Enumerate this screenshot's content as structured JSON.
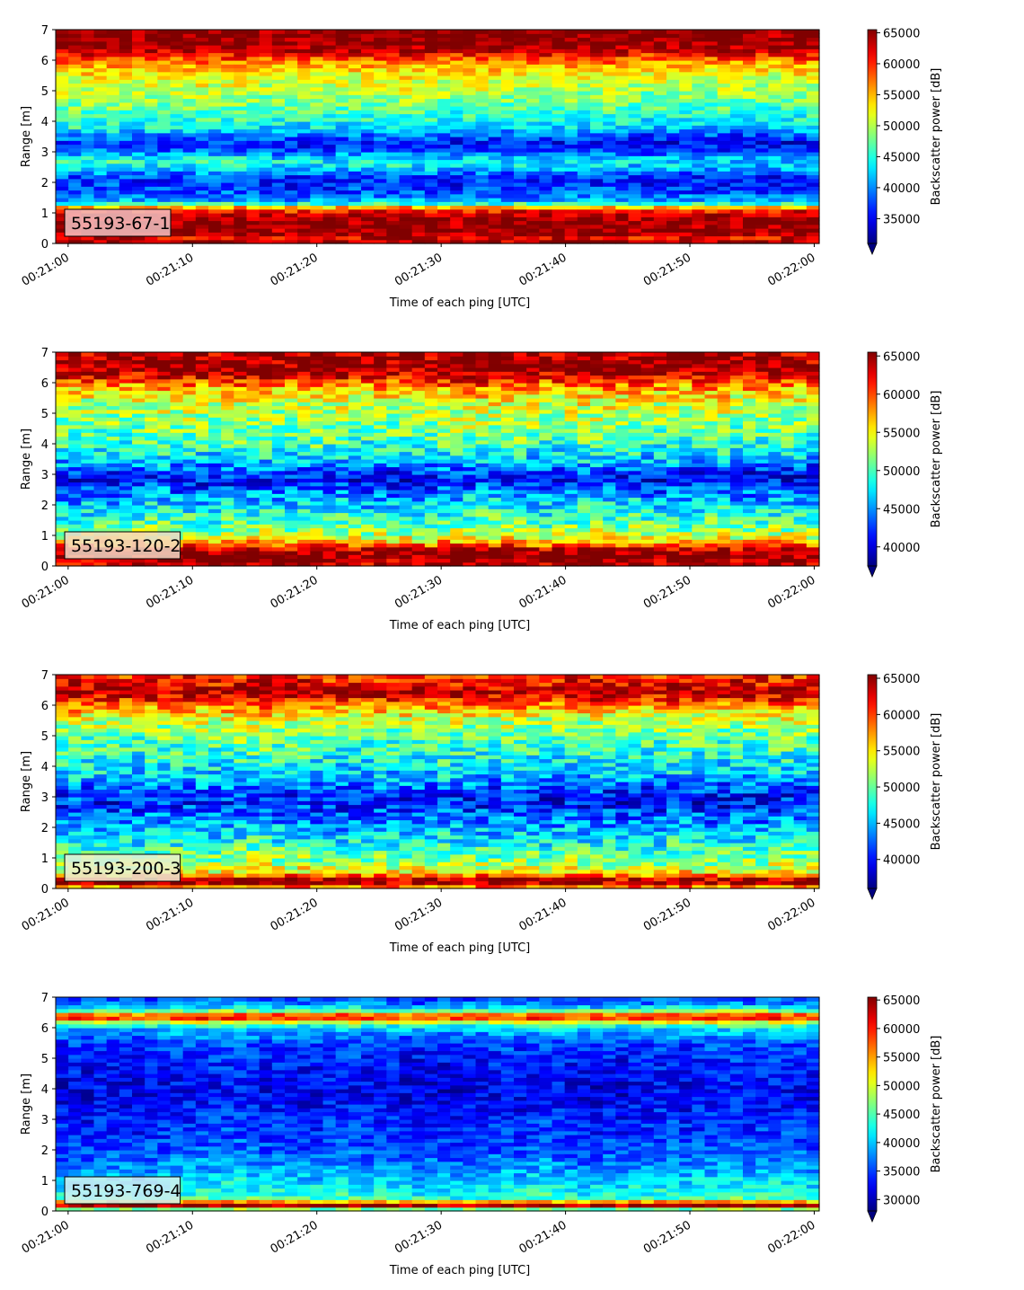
{
  "chart_data": [
    {
      "type": "heatmap",
      "label": "55193-67-1",
      "label_bg": "#f3c2c2",
      "xlabel": "Time of each ping [UTC]",
      "ylabel": "Range [m]",
      "colorbar_label": "Backscatter power [dB]",
      "ylim": [
        0,
        7
      ],
      "yticks": [
        "0",
        "1",
        "2",
        "3",
        "4",
        "5",
        "6",
        "7"
      ],
      "xticks": [
        "00:21:00",
        "00:21:10",
        "00:21:20",
        "00:21:30",
        "00:21:40",
        "00:21:50",
        "00:22:00"
      ],
      "x_seconds_range": [
        -1,
        60.4
      ],
      "cbar_range": [
        31000,
        65500
      ],
      "cbar_ticks": [
        "35000",
        "40000",
        "45000",
        "50000",
        "55000",
        "60000",
        "65000"
      ],
      "cbar_extend": "min",
      "colormap": "jet",
      "grid": false,
      "profile": [
        [
          0,
          65500
        ],
        [
          0.15,
          61000
        ],
        [
          0.3,
          64500
        ],
        [
          0.5,
          65000
        ],
        [
          0.8,
          64500
        ],
        [
          1.0,
          63000
        ],
        [
          1.15,
          58000
        ],
        [
          1.3,
          46000
        ],
        [
          1.45,
          40500
        ],
        [
          1.7,
          38000
        ],
        [
          2.0,
          37000
        ],
        [
          2.25,
          38500
        ],
        [
          2.45,
          43500
        ],
        [
          2.65,
          45500
        ],
        [
          2.85,
          43500
        ],
        [
          3.05,
          39000
        ],
        [
          3.3,
          37500
        ],
        [
          3.55,
          40500
        ],
        [
          3.8,
          44500
        ],
        [
          4.2,
          46500
        ],
        [
          4.6,
          48500
        ],
        [
          5.0,
          50500
        ],
        [
          5.4,
          52000
        ],
        [
          5.8,
          55000
        ],
        [
          6.05,
          58500
        ],
        [
          6.3,
          63000
        ],
        [
          6.55,
          65500
        ],
        [
          7.0,
          65500
        ]
      ],
      "trend": [
        [
          0,
          0
        ],
        [
          1.5,
          0
        ],
        [
          2.5,
          -2500
        ],
        [
          3.6,
          -3000
        ],
        [
          4.5,
          -1500
        ],
        [
          5.5,
          -800
        ],
        [
          6.2,
          0
        ],
        [
          7,
          0
        ]
      ],
      "noise": 3500,
      "seed": 11
    },
    {
      "type": "heatmap",
      "label": "55193-120-2",
      "label_bg": "#f3d9c5",
      "xlabel": "Time of each ping [UTC]",
      "ylabel": "Range [m]",
      "colorbar_label": "Backscatter power [dB]",
      "ylim": [
        0,
        7
      ],
      "yticks": [
        "0",
        "1",
        "2",
        "3",
        "4",
        "5",
        "6",
        "7"
      ],
      "xticks": [
        "00:21:00",
        "00:21:10",
        "00:21:20",
        "00:21:30",
        "00:21:40",
        "00:21:50",
        "00:22:00"
      ],
      "x_seconds_range": [
        -1,
        60.4
      ],
      "cbar_range": [
        37500,
        65500
      ],
      "cbar_ticks": [
        "40000",
        "45000",
        "50000",
        "55000",
        "60000",
        "65000"
      ],
      "cbar_extend": "min",
      "colormap": "jet",
      "grid": false,
      "profile": [
        [
          0,
          65000
        ],
        [
          0.1,
          64000
        ],
        [
          0.25,
          65500
        ],
        [
          0.5,
          65500
        ],
        [
          0.6,
          62000
        ],
        [
          0.75,
          58000
        ],
        [
          0.95,
          54000
        ],
        [
          1.3,
          51000
        ],
        [
          1.7,
          48500
        ],
        [
          2.1,
          46500
        ],
        [
          2.5,
          44000
        ],
        [
          2.8,
          41500
        ],
        [
          3.0,
          42500
        ],
        [
          3.3,
          45500
        ],
        [
          3.6,
          48000
        ],
        [
          4.0,
          50000
        ],
        [
          4.5,
          51500
        ],
        [
          5.0,
          52500
        ],
        [
          5.5,
          54500
        ],
        [
          5.9,
          58000
        ],
        [
          6.2,
          62500
        ],
        [
          6.5,
          65500
        ],
        [
          7.0,
          64000
        ]
      ],
      "trend": [
        [
          0,
          0
        ],
        [
          2,
          0
        ],
        [
          3,
          -1500
        ],
        [
          4,
          -1000
        ],
        [
          5,
          0
        ],
        [
          7,
          0
        ]
      ],
      "noise": 3800,
      "seed": 23
    },
    {
      "type": "heatmap",
      "label": "55193-200-3",
      "label_bg": "#e9f0d6",
      "xlabel": "Time of each ping [UTC]",
      "ylabel": "Range [m]",
      "colorbar_label": "Backscatter power [dB]",
      "ylim": [
        0,
        7
      ],
      "yticks": [
        "0",
        "1",
        "2",
        "3",
        "4",
        "5",
        "6",
        "7"
      ],
      "xticks": [
        "00:21:00",
        "00:21:10",
        "00:21:20",
        "00:21:30",
        "00:21:40",
        "00:21:50",
        "00:22:00"
      ],
      "x_seconds_range": [
        -1,
        60.4
      ],
      "cbar_range": [
        36000,
        65500
      ],
      "cbar_ticks": [
        "40000",
        "45000",
        "50000",
        "55000",
        "60000",
        "65000"
      ],
      "cbar_extend": "min",
      "colormap": "jet",
      "grid": false,
      "profile": [
        [
          0,
          52000
        ],
        [
          0.1,
          62000
        ],
        [
          0.25,
          65500
        ],
        [
          0.4,
          60000
        ],
        [
          0.55,
          54500
        ],
        [
          0.8,
          52000
        ],
        [
          1.1,
          50000
        ],
        [
          1.5,
          47500
        ],
        [
          2.0,
          44500
        ],
        [
          2.5,
          42500
        ],
        [
          2.8,
          40500
        ],
        [
          3.1,
          41500
        ],
        [
          3.5,
          44500
        ],
        [
          4.0,
          47000
        ],
        [
          4.5,
          48500
        ],
        [
          5.0,
          50000
        ],
        [
          5.5,
          52500
        ],
        [
          5.9,
          56500
        ],
        [
          6.2,
          61000
        ],
        [
          6.45,
          64500
        ],
        [
          6.7,
          62000
        ],
        [
          7.0,
          60000
        ]
      ],
      "trend": [
        [
          0,
          0
        ],
        [
          2,
          0
        ],
        [
          3,
          -1500
        ],
        [
          4,
          -800
        ],
        [
          5,
          0
        ],
        [
          7,
          0
        ]
      ],
      "noise": 4000,
      "seed": 37
    },
    {
      "type": "heatmap",
      "label": "55193-769-4",
      "label_bg": "#d3eef2",
      "xlabel": "Time of each ping [UTC]",
      "ylabel": "Range [m]",
      "colorbar_label": "Backscatter power [dB]",
      "ylim": [
        0,
        7
      ],
      "yticks": [
        "0",
        "1",
        "2",
        "3",
        "4",
        "5",
        "6",
        "7"
      ],
      "xticks": [
        "00:21:00",
        "00:21:10",
        "00:21:20",
        "00:21:30",
        "00:21:40",
        "00:21:50",
        "00:22:00"
      ],
      "x_seconds_range": [
        -1,
        60.4
      ],
      "cbar_range": [
        28000,
        65500
      ],
      "cbar_ticks": [
        "30000",
        "35000",
        "40000",
        "45000",
        "50000",
        "55000",
        "60000",
        "65000"
      ],
      "cbar_extend": "min",
      "colormap": "jet",
      "grid": false,
      "profile": [
        [
          0,
          40000
        ],
        [
          0.1,
          50000
        ],
        [
          0.18,
          64000
        ],
        [
          0.28,
          62000
        ],
        [
          0.35,
          45000
        ],
        [
          0.6,
          42500
        ],
        [
          1.0,
          40500
        ],
        [
          1.5,
          37500
        ],
        [
          2.0,
          35500
        ],
        [
          2.5,
          34500
        ],
        [
          3.0,
          33500
        ],
        [
          3.5,
          32500
        ],
        [
          4.0,
          32000
        ],
        [
          4.5,
          32500
        ],
        [
          5.0,
          33500
        ],
        [
          5.5,
          35000
        ],
        [
          5.9,
          38500
        ],
        [
          6.1,
          44000
        ],
        [
          6.25,
          54000
        ],
        [
          6.35,
          61000
        ],
        [
          6.45,
          56000
        ],
        [
          6.6,
          43000
        ],
        [
          6.8,
          37000
        ],
        [
          7.0,
          35000
        ]
      ],
      "trend": [
        [
          0,
          0
        ],
        [
          7,
          0
        ]
      ],
      "noise": 3300,
      "seed": 53
    }
  ]
}
